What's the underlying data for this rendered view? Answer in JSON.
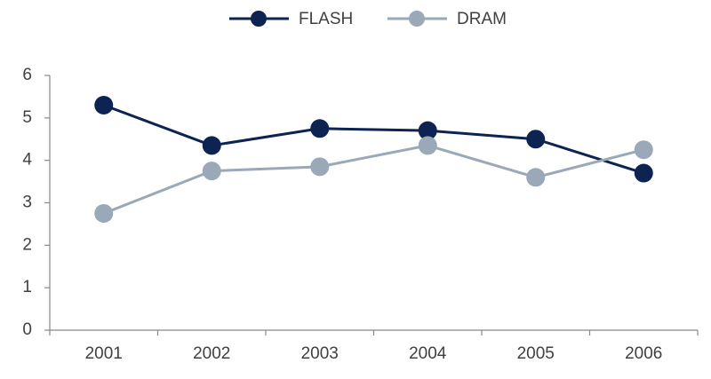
{
  "chart_data": {
    "type": "line",
    "categories": [
      "2001",
      "2002",
      "2003",
      "2004",
      "2005",
      "2006"
    ],
    "series": [
      {
        "name": "FLASH",
        "color": "#0d2351",
        "values": [
          5.3,
          4.35,
          4.75,
          4.7,
          4.5,
          3.7
        ]
      },
      {
        "name": "DRAM",
        "color": "#9aa8b7",
        "values": [
          2.75,
          3.75,
          3.85,
          4.35,
          3.6,
          4.25
        ]
      }
    ],
    "ylim": [
      0,
      6
    ],
    "yticks": [
      0,
      1,
      2,
      3,
      4,
      5,
      6
    ],
    "legend": "top"
  }
}
